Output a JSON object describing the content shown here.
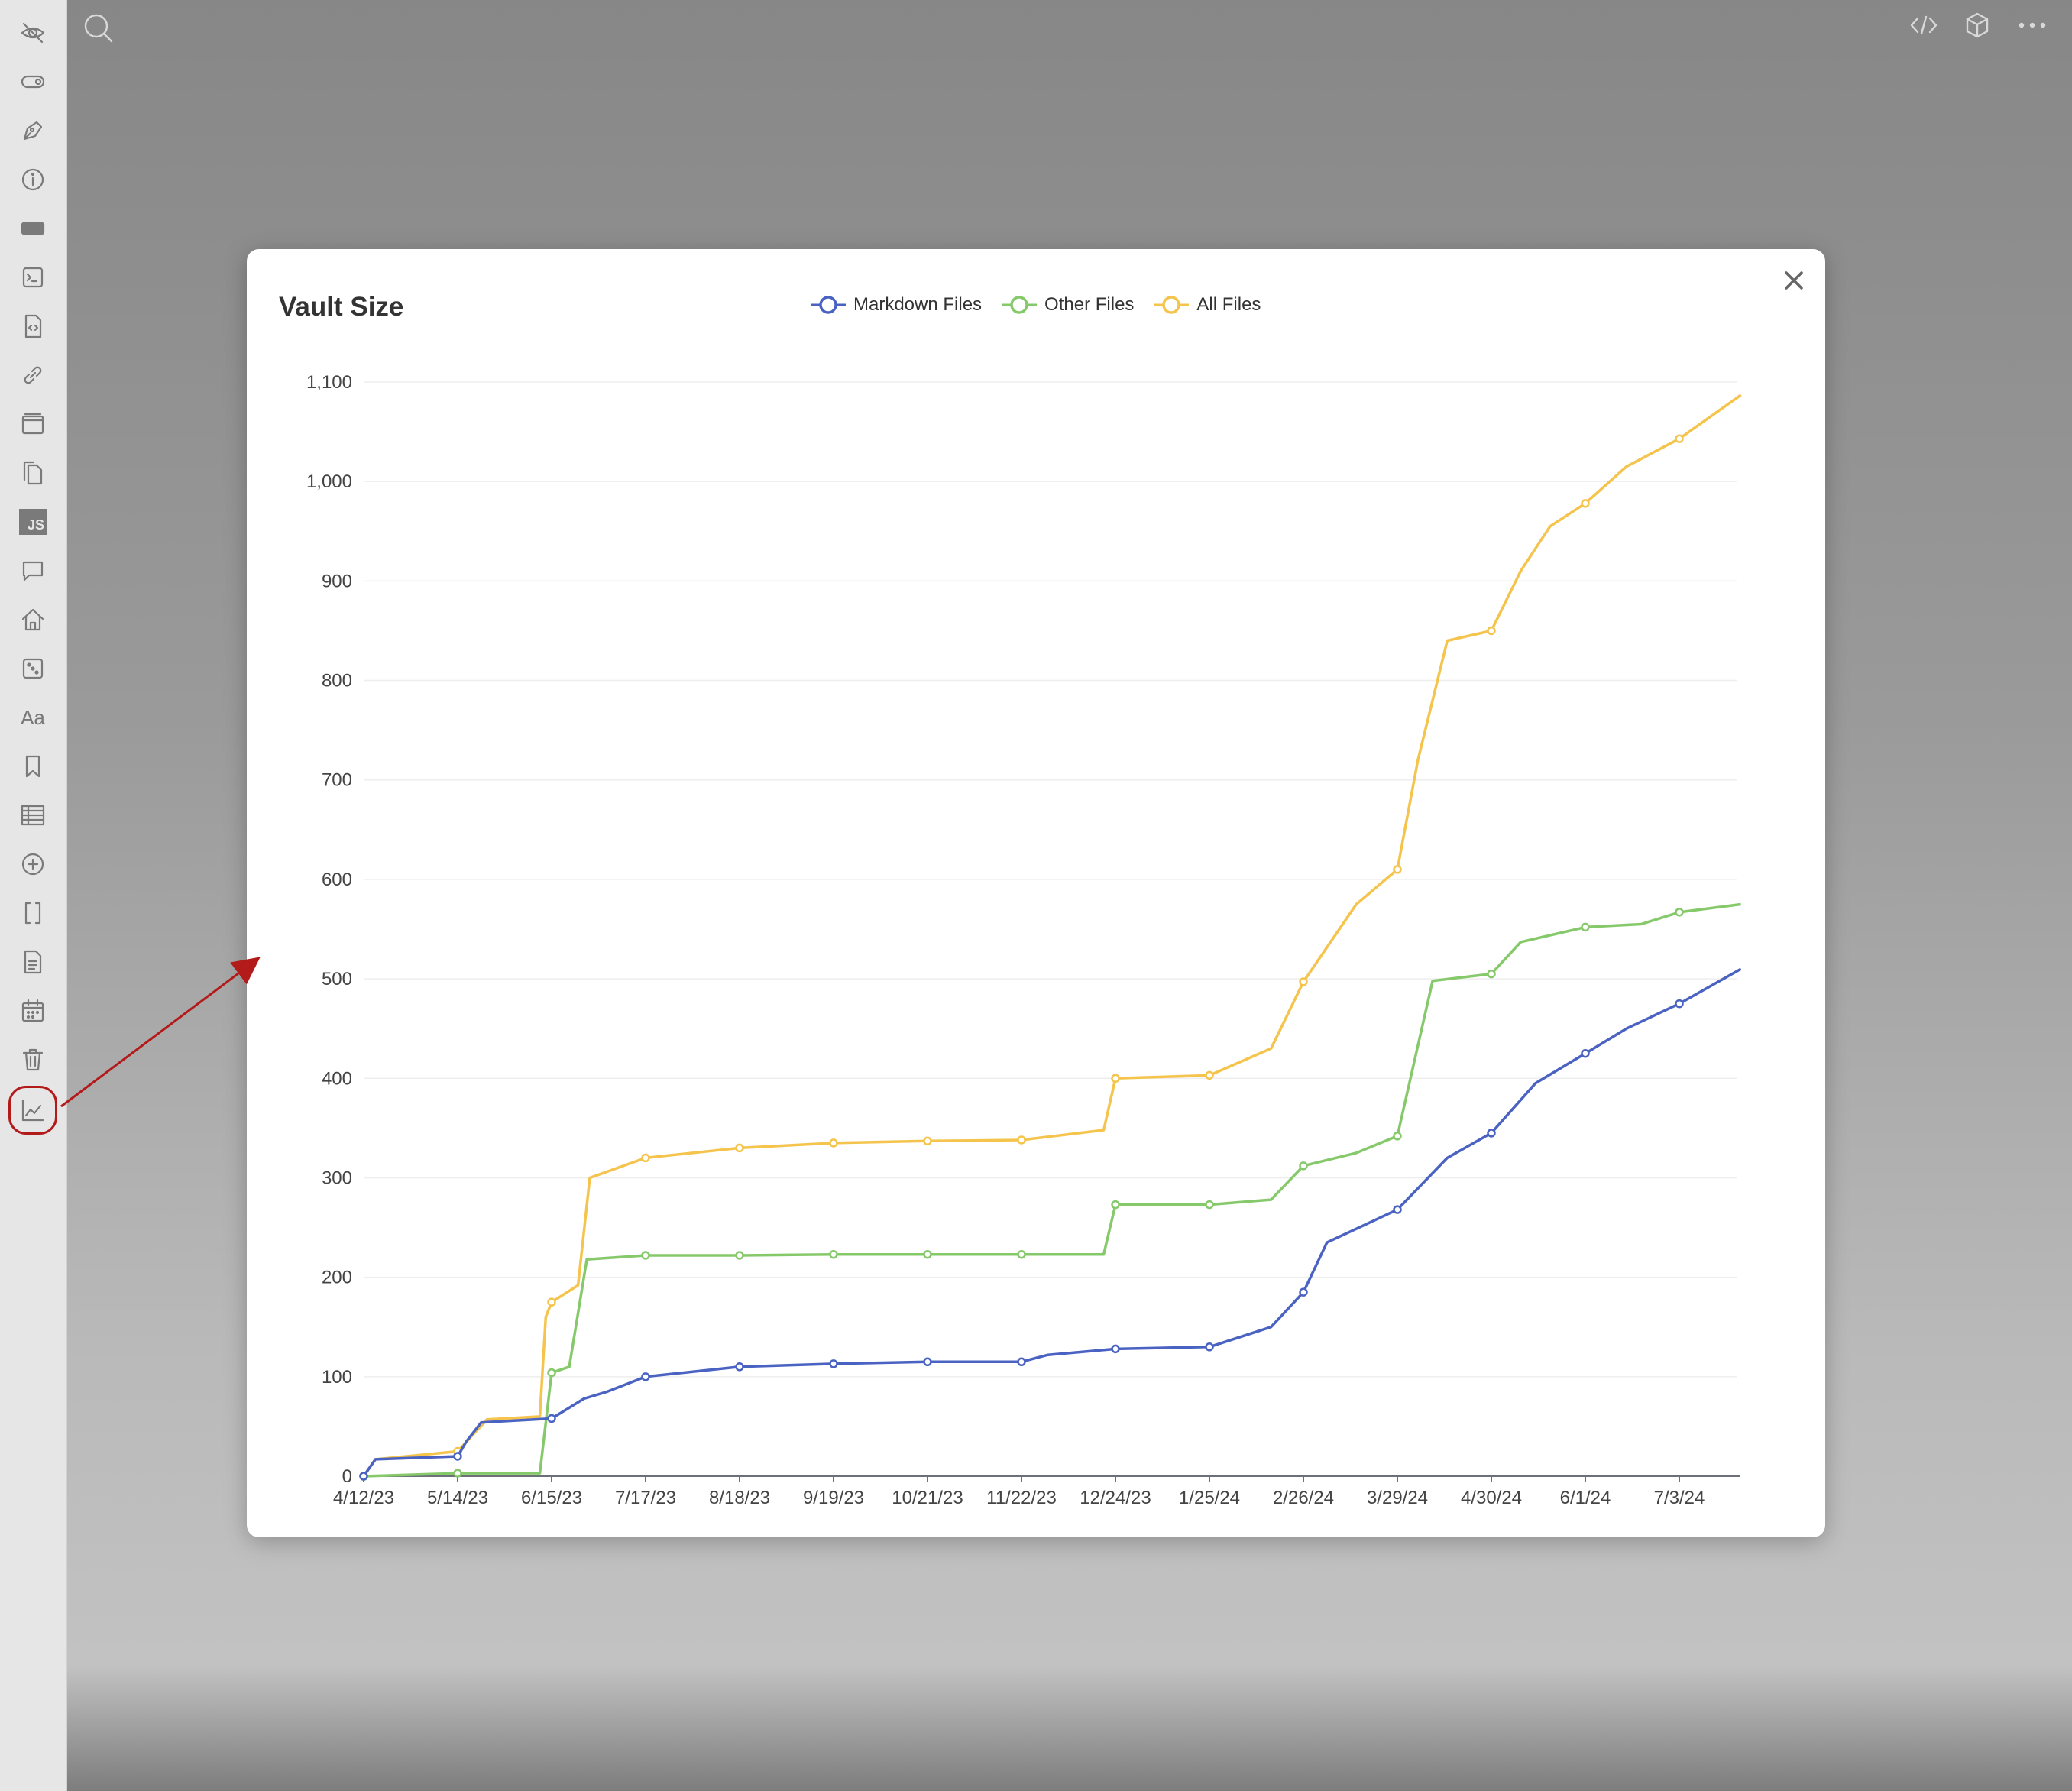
{
  "ribbon": {
    "icons": [
      {
        "name": "eye-off-icon"
      },
      {
        "name": "toggle-icon"
      },
      {
        "name": "pen-tool-icon"
      },
      {
        "name": "info-icon"
      },
      {
        "name": "markdown-icon"
      },
      {
        "name": "terminal-icon"
      },
      {
        "name": "file-code-icon"
      },
      {
        "name": "link-icon"
      },
      {
        "name": "panel-icon"
      },
      {
        "name": "copy-files-icon"
      },
      {
        "name": "js-icon",
        "text": "JS"
      },
      {
        "name": "comment-icon"
      },
      {
        "name": "home-icon"
      },
      {
        "name": "dice-icon"
      },
      {
        "name": "font-icon",
        "text": "Aa"
      },
      {
        "name": "bookmark-icon"
      },
      {
        "name": "table-icon"
      },
      {
        "name": "plus-circle-icon"
      },
      {
        "name": "brackets-icon"
      },
      {
        "name": "document-icon"
      },
      {
        "name": "calendar-icon"
      },
      {
        "name": "trash-icon"
      },
      {
        "name": "chart-icon",
        "selected": true
      }
    ]
  },
  "toolbar": {
    "icons": [
      "search-icon",
      "code-icon",
      "cube-icon",
      "more-icon"
    ]
  },
  "annotation": {
    "color": "#b31b1b"
  },
  "modal": {
    "title": "Vault Size",
    "close_icon": "close-icon"
  },
  "chart_data": {
    "type": "line",
    "title": "Vault Size",
    "x_ticks": [
      "4/12/23",
      "5/14/23",
      "6/15/23",
      "7/17/23",
      "8/18/23",
      "9/19/23",
      "10/21/23",
      "11/22/23",
      "12/24/23",
      "1/25/24",
      "2/26/24",
      "3/29/24",
      "4/30/24",
      "6/1/24",
      "7/3/24"
    ],
    "ylim": [
      0,
      1100
    ],
    "y_ticks": [
      0,
      100,
      200,
      300,
      400,
      500,
      600,
      700,
      800,
      900,
      "1,000",
      "1,100"
    ],
    "legend_position": "top",
    "series": [
      {
        "name": "Markdown Files",
        "color": "#4a62c2",
        "x": [
          "2023-04-12",
          "2023-04-16",
          "2023-05-14",
          "2023-05-17",
          "2023-05-22",
          "2023-06-15",
          "2023-06-20",
          "2023-06-26",
          "2023-07-04",
          "2023-07-17",
          "2023-08-18",
          "2023-09-19",
          "2023-10-21",
          "2023-11-22",
          "2023-12-01",
          "2023-12-24",
          "2024-01-25",
          "2024-02-15",
          "2024-02-26",
          "2024-03-05",
          "2024-03-29",
          "2024-04-15",
          "2024-04-30",
          "2024-05-15",
          "2024-06-01",
          "2024-06-15",
          "2024-07-03",
          "2024-07-24"
        ],
        "y": [
          0,
          17,
          20,
          35,
          54,
          58,
          67,
          78,
          85,
          100,
          110,
          113,
          115,
          115,
          122,
          128,
          130,
          150,
          185,
          235,
          268,
          320,
          345,
          395,
          425,
          450,
          475,
          510
        ]
      },
      {
        "name": "Other Files",
        "color": "#86c96b",
        "x": [
          "2023-04-12",
          "2023-05-14",
          "2023-06-11",
          "2023-06-15",
          "2023-06-21",
          "2023-06-27",
          "2023-07-17",
          "2023-08-18",
          "2023-09-19",
          "2023-10-21",
          "2023-11-22",
          "2023-12-20",
          "2023-12-24",
          "2024-01-25",
          "2024-02-15",
          "2024-02-26",
          "2024-03-15",
          "2024-03-29",
          "2024-04-10",
          "2024-04-30",
          "2024-05-10",
          "2024-06-01",
          "2024-06-20",
          "2024-07-03",
          "2024-07-24"
        ],
        "y": [
          0,
          3,
          3,
          104,
          110,
          218,
          222,
          222,
          223,
          223,
          223,
          223,
          273,
          273,
          278,
          312,
          325,
          342,
          498,
          505,
          537,
          552,
          555,
          567,
          575
        ]
      },
      {
        "name": "All Files",
        "color": "#f4c44d",
        "x": [
          "2023-04-12",
          "2023-04-16",
          "2023-05-14",
          "2023-05-24",
          "2023-06-11",
          "2023-06-13",
          "2023-06-15",
          "2023-06-24",
          "2023-06-28",
          "2023-07-17",
          "2023-08-18",
          "2023-09-19",
          "2023-10-21",
          "2023-11-22",
          "2023-12-20",
          "2023-12-24",
          "2024-01-25",
          "2024-02-15",
          "2024-02-26",
          "2024-03-15",
          "2024-03-29",
          "2024-04-05",
          "2024-04-15",
          "2024-04-30",
          "2024-05-10",
          "2024-05-20",
          "2024-06-01",
          "2024-06-15",
          "2024-07-03",
          "2024-07-24"
        ],
        "y": [
          0,
          17,
          25,
          57,
          60,
          160,
          175,
          192,
          300,
          320,
          330,
          335,
          337,
          338,
          348,
          400,
          403,
          430,
          497,
          575,
          610,
          720,
          840,
          850,
          910,
          955,
          978,
          1015,
          1043,
          1087
        ]
      }
    ]
  }
}
